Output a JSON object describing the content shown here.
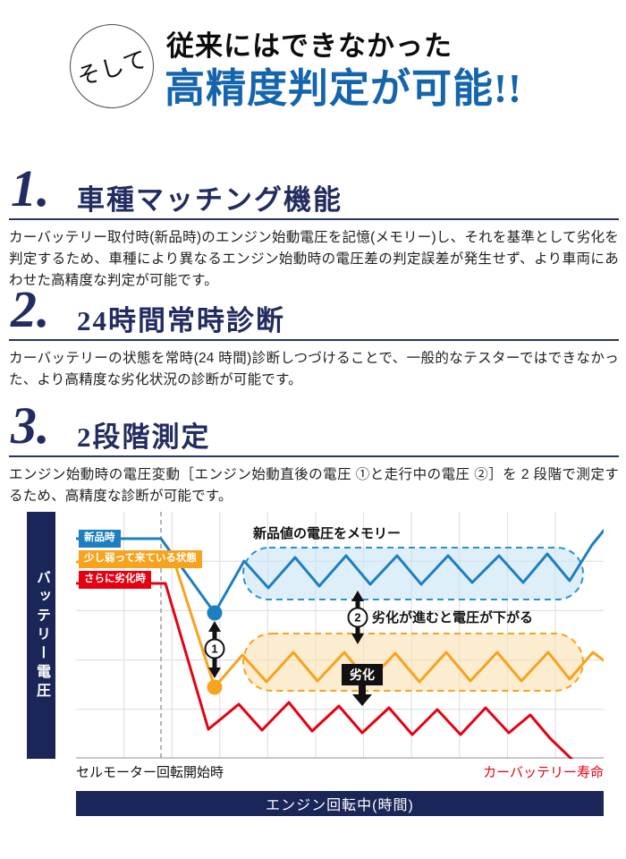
{
  "header": {
    "badge_label": "そして",
    "subtitle": "従来にはできなかった",
    "title": "高精度判定が可能!!",
    "title_color": "#1565ad"
  },
  "sections": [
    {
      "number": "1.",
      "title": "車種マッチング機能",
      "body": "カーバッテリー取付時(新品時)のエンジン始動電圧を記憶(メモリー)し、それを基準として劣化を判定するため、車種により異なるエンジン始動時の電圧差の判定誤差が発生せず、より車両にあわせた高精度な判定が可能です。"
    },
    {
      "number": "2.",
      "title": "24時間常時診断",
      "body": "カーバッテリーの状態を常時(24 時間)診断しつづけることで、一般的なテスターではできなかった、より高精度な劣化状況の診断が可能です。"
    },
    {
      "number": "3.",
      "title": "2段階測定",
      "body": "エンジン始動時の電圧変動［エンジン始動直後の電圧 ①と走行中の電圧 ②］を 2 段階で測定するため、高精度な診断が可能です。"
    }
  ],
  "chart_data": {
    "type": "line",
    "y_axis_label": "バッテリー電圧",
    "x_axis_label": "エンジン回転中(時間)",
    "start_label": "セルモーター回転開始時",
    "end_label": "カーバッテリー寿命",
    "annotations": {
      "memory": "新品値の電圧をメモリー",
      "drop": "劣化が進むと電圧が下がる",
      "degrade": "劣化",
      "step1": "1",
      "step2": "2"
    },
    "zones": [
      {
        "fill": "#c9e4f6",
        "stroke": "#2e8fd0"
      },
      {
        "fill": "#fadfb0",
        "stroke": "#f6a31d"
      }
    ],
    "series": [
      {
        "name": "新品時",
        "color": "#1d7fc1",
        "dot": [
          155,
          113
        ],
        "points": [
          [
            0,
            30
          ],
          [
            95,
            30
          ],
          [
            155,
            113
          ],
          [
            188,
            55
          ],
          [
            215,
            85
          ],
          [
            245,
            51
          ],
          [
            272,
            83
          ],
          [
            302,
            49
          ],
          [
            329,
            81
          ],
          [
            359,
            49
          ],
          [
            386,
            81
          ],
          [
            416,
            49
          ],
          [
            443,
            79
          ],
          [
            473,
            49
          ],
          [
            500,
            79
          ],
          [
            527,
            47
          ],
          [
            552,
            77
          ],
          [
            577,
            37
          ],
          [
            590,
            21
          ]
        ]
      },
      {
        "name": "少し弱って来ている状態",
        "color": "#f6a31d",
        "dot": [
          155,
          196
        ],
        "points": [
          [
            0,
            56
          ],
          [
            110,
            56
          ],
          [
            155,
            196
          ],
          [
            186,
            160
          ],
          [
            213,
            190
          ],
          [
            243,
            157
          ],
          [
            270,
            189
          ],
          [
            300,
            157
          ],
          [
            327,
            190
          ],
          [
            357,
            158
          ],
          [
            384,
            190
          ],
          [
            414,
            157
          ],
          [
            441,
            189
          ],
          [
            471,
            157
          ],
          [
            498,
            189
          ],
          [
            528,
            157
          ],
          [
            552,
            187
          ],
          [
            578,
            157
          ],
          [
            590,
            166
          ]
        ]
      },
      {
        "name": "さらに劣化時",
        "color": "#e60012",
        "points": [
          [
            0,
            80
          ],
          [
            100,
            80
          ],
          [
            148,
            243
          ],
          [
            182,
            215
          ],
          [
            208,
            244
          ],
          [
            238,
            213
          ],
          [
            264,
            245
          ],
          [
            294,
            217
          ],
          [
            320,
            247
          ],
          [
            350,
            219
          ],
          [
            376,
            249
          ],
          [
            404,
            221
          ],
          [
            430,
            249
          ],
          [
            458,
            219
          ],
          [
            484,
            247
          ],
          [
            508,
            227
          ],
          [
            530,
            253
          ],
          [
            556,
            278
          ]
        ]
      }
    ]
  },
  "colors": {
    "navy": "#1a2558",
    "heading_navy": "#222c60",
    "blue": "#1d7fc1",
    "orange": "#f6a31d",
    "red": "#e60012"
  }
}
